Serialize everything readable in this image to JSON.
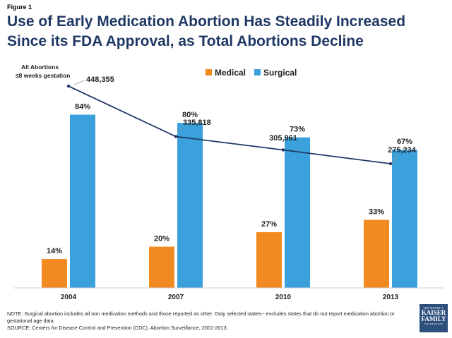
{
  "figure_label": "Figure 1",
  "title_line1": "Use of Early Medication Abortion Has Steadily Increased",
  "title_line2": "Since its FDA Approval, as Total Abortions Decline",
  "note": "NOTE: Surgical abortion includes all non medication methods and those reported as other. Only selected states-- excludes states that do not report medication abortion or gestational age data.",
  "source": "SOURCE: Centers for Disease Control and Prevention (CDC). Abortion Surveillance, 2001-2013.",
  "logo": {
    "line1": "THE HENRY J.",
    "line2a": "KAISER",
    "line2b": "FAMILY",
    "line3": "FOUNDATION"
  },
  "chart_data": {
    "type": "bar",
    "categories": [
      "2004",
      "2007",
      "2010",
      "2013"
    ],
    "series": [
      {
        "name": "Medical",
        "values": [
          14,
          20,
          27,
          33
        ],
        "labels": [
          "14%",
          "20%",
          "27%",
          "33%"
        ],
        "color": "#f08a21"
      },
      {
        "name": "Surgical",
        "values": [
          84,
          80,
          73,
          67
        ],
        "labels": [
          "84%",
          "80%",
          "73%",
          "67%"
        ],
        "color": "#3aa1dc"
      }
    ],
    "ylim": [
      0,
      100
    ],
    "line_series": {
      "name_line1": "All Abortions",
      "name_line2": "≤8 weeks gestation",
      "values": [
        448355,
        335818,
        305961,
        275234
      ],
      "labels": [
        "448,355",
        "335,818",
        "305,961",
        "275,234"
      ],
      "color": "#1f3864"
    },
    "legend_position": "top-center",
    "grid": false
  }
}
